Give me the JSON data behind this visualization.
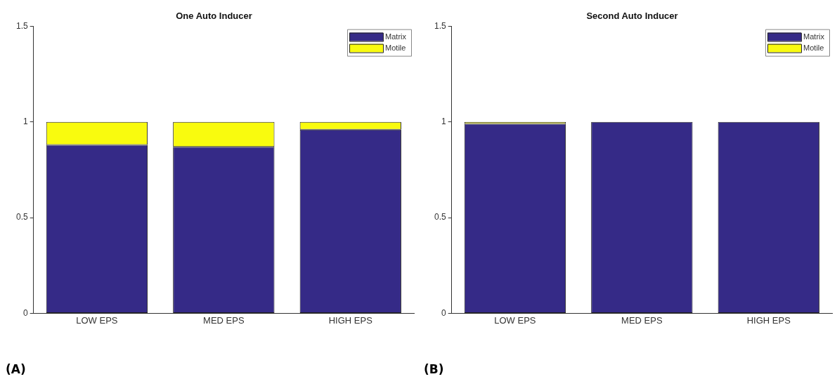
{
  "chart_data": [
    {
      "type": "bar",
      "title": "One Auto Inducer",
      "categories": [
        "LOW EPS",
        "MED EPS",
        "HIGH EPS"
      ],
      "stacked": true,
      "ylim": [
        0,
        1.5
      ],
      "yticks": [
        0,
        0.5,
        1,
        1.5
      ],
      "legend": "top right",
      "grid": false,
      "annotations": [
        "(A)"
      ],
      "series": [
        {
          "name": "Matrix",
          "color": "#352a87",
          "values": [
            0.88,
            0.87,
            0.96
          ]
        },
        {
          "name": "Motile",
          "color": "#f9fb0e",
          "values": [
            0.12,
            0.13,
            0.04
          ]
        }
      ]
    },
    {
      "type": "bar",
      "title": "Second Auto Inducer",
      "categories": [
        "LOW EPS",
        "MED EPS",
        "HIGH EPS"
      ],
      "stacked": true,
      "ylim": [
        0,
        1.5
      ],
      "yticks": [
        0,
        0.5,
        1,
        1.5
      ],
      "legend": "top right",
      "grid": false,
      "annotations": [
        "(B)"
      ],
      "series": [
        {
          "name": "Matrix",
          "color": "#352a87",
          "values": [
            0.99,
            1,
            1
          ]
        },
        {
          "name": "Motile",
          "color": "#f9fb0e",
          "values": [
            0.01,
            0,
            0
          ]
        }
      ]
    }
  ]
}
